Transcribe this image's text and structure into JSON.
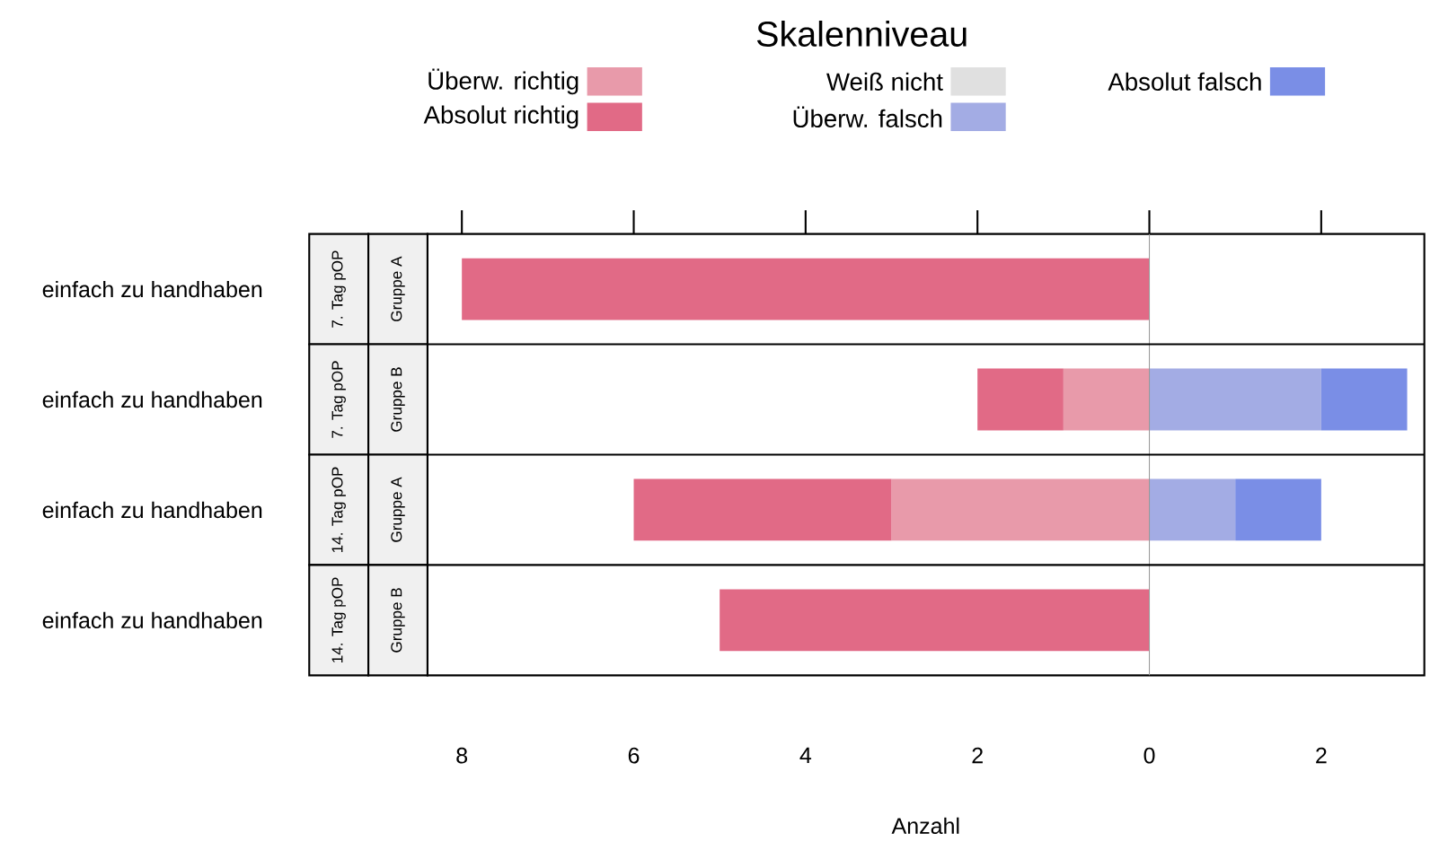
{
  "chart_data": {
    "type": "bar",
    "orientation": "horizontal",
    "stacked": true,
    "legend_title": "Skalenniveau",
    "xlabel": "Anzahl",
    "legend": "top",
    "categories": [
      "einfach zu handhaben",
      "einfach zu handhaben",
      "einfach zu handhaben",
      "einfach zu handhaben"
    ],
    "annotations": [
      "7. Tag pOP",
      "Gruppe A",
      "7. Tag pOP",
      "Gruppe B",
      "14. Tag pOP",
      "Gruppe A",
      "14. Tag pOP",
      "Gruppe B"
    ],
    "series": [
      {
        "name": "Überw. richtig",
        "color": "#e89aaa",
        "values": [
          0,
          -1,
          -3,
          0
        ]
      },
      {
        "name": "Absolut richtig",
        "color": "#e16a86",
        "values": [
          -8,
          -1,
          -3,
          -5
        ]
      },
      {
        "name": "Weiß nicht",
        "color": "#e0e0e0",
        "values": [
          0,
          0,
          0,
          0
        ]
      },
      {
        "name": "Überw. falsch",
        "color": "#a3ace4",
        "values": [
          0,
          2,
          1,
          0
        ]
      },
      {
        "name": "Absolut falsch",
        "color": "#7a8ee6",
        "values": [
          0,
          1,
          1,
          0
        ]
      }
    ],
    "ref_lines": [
      {
        "axis": "x",
        "value": 0,
        "color": "#999999"
      }
    ],
    "xlim": [
      -8.4,
      3.2
    ],
    "xticks": [
      {
        "value": -8,
        "label": "8"
      },
      {
        "value": -6,
        "label": "6"
      },
      {
        "value": -4,
        "label": "4"
      },
      {
        "value": -2,
        "label": "2"
      },
      0,
      2
    ]
  }
}
